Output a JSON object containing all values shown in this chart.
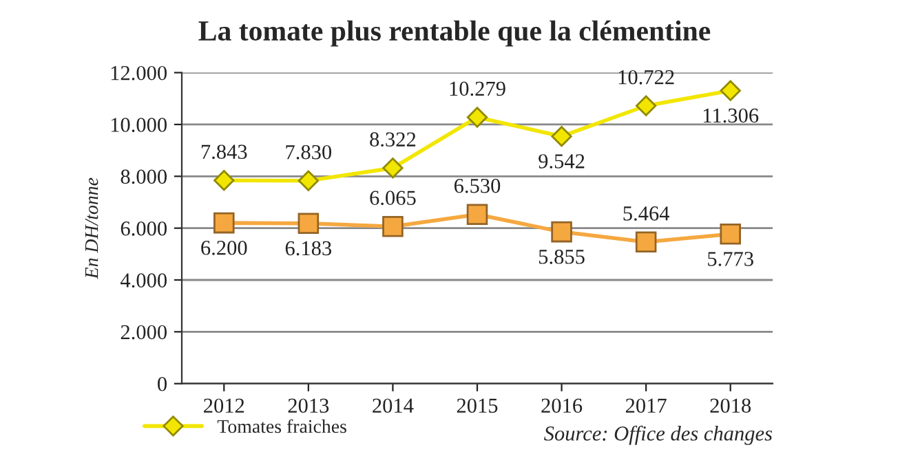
{
  "chart_data": {
    "type": "line",
    "title": "La tomate plus rentable que la clémentine",
    "ylabel": "En DH/tonne",
    "categories": [
      "2012",
      "2013",
      "2014",
      "2015",
      "2016",
      "2017",
      "2018"
    ],
    "series": [
      {
        "name": "Tomates fraiches",
        "color": "#f2e600",
        "marker": "diamond",
        "values": [
          7843,
          7830,
          8322,
          10279,
          9542,
          10722,
          11306
        ],
        "value_labels": [
          "7.843",
          "7.830",
          "8.322",
          "10.279",
          "9.542",
          "10.722",
          "11.306"
        ]
      },
      {
        "color": "#f5a840",
        "marker": "square",
        "values": [
          6200,
          6183,
          6065,
          6530,
          5855,
          5464,
          5773
        ],
        "value_labels": [
          "6.200",
          "6.183",
          "6.065",
          "6.530",
          "5.855",
          "5.464",
          "5.773"
        ]
      }
    ],
    "ylim": [
      0,
      12000
    ],
    "yticks": [
      {
        "value": 0,
        "label": "0"
      },
      {
        "value": 2000,
        "label": "2.000"
      },
      {
        "value": 4000,
        "label": "4.000"
      },
      {
        "value": 6000,
        "label": "6.000"
      },
      {
        "value": 8000,
        "label": "8.000"
      },
      {
        "value": 10000,
        "label": "10.000"
      },
      {
        "value": 12000,
        "label": "12.000"
      }
    ],
    "grid": "y",
    "legend": "bottom left",
    "line_style": "solid",
    "annotations": [
      "Source: Office des changes"
    ]
  }
}
